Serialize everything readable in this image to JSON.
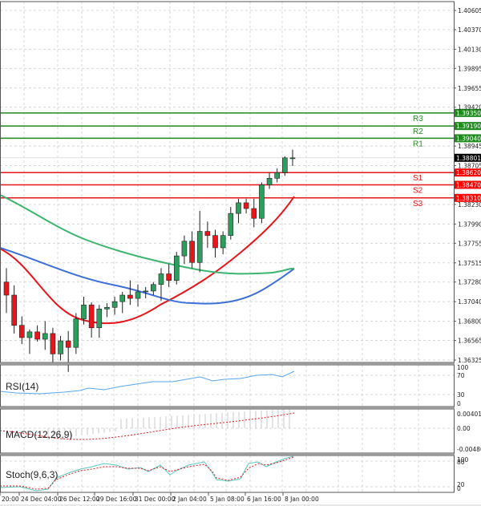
{
  "chart_data": {
    "type": "candlestick",
    "title": "",
    "main_panel": {
      "y_ticks": [
        "1.40605",
        "1.40370",
        "1.40130",
        "1.39895",
        "1.39655",
        "1.39420",
        "1.38945",
        "1.38705",
        "1.38230",
        "1.37990",
        "1.37755",
        "1.37515",
        "1.37280",
        "1.37040",
        "1.36800",
        "1.36565",
        "1.36325"
      ],
      "ylim": [
        1.3625,
        1.4072
      ],
      "current_price": "1.38801",
      "resistance": [
        {
          "label": "R3",
          "value": "1.39350"
        },
        {
          "label": "R2",
          "value": "1.39190"
        },
        {
          "label": "R1",
          "value": "1.39040"
        }
      ],
      "support": [
        {
          "label": "S1",
          "value": "1.38620"
        },
        {
          "label": "S2",
          "value": "1.38470"
        },
        {
          "label": "S3",
          "value": "1.38310"
        }
      ],
      "moving_averages": [
        {
          "name": "fast MA",
          "color": "#e8161b"
        },
        {
          "name": "medium MA",
          "color": "#3d6fdb"
        },
        {
          "name": "slow MA",
          "color": "#3cb56e"
        }
      ],
      "candles_ohlc": [
        [
          1.3728,
          1.3745,
          1.369,
          1.3712
        ],
        [
          1.3712,
          1.3724,
          1.3665,
          1.3675
        ],
        [
          1.3675,
          1.3686,
          1.3652,
          1.366
        ],
        [
          1.366,
          1.367,
          1.364,
          1.3667
        ],
        [
          1.3667,
          1.3675,
          1.3655,
          1.3658
        ],
        [
          1.3658,
          1.368,
          1.3645,
          1.3665
        ],
        [
          1.3665,
          1.3672,
          1.3628,
          1.364
        ],
        [
          1.364,
          1.3662,
          1.3632,
          1.3656
        ],
        [
          1.3656,
          1.3668,
          1.3618,
          1.3648
        ],
        [
          1.3648,
          1.369,
          1.364,
          1.3683
        ],
        [
          1.3683,
          1.371,
          1.3676,
          1.37
        ],
        [
          1.37,
          1.3703,
          1.366,
          1.3672
        ],
        [
          1.3672,
          1.37,
          1.366,
          1.3695
        ],
        [
          1.3695,
          1.3702,
          1.3685,
          1.3697
        ],
        [
          1.3697,
          1.371,
          1.3688,
          1.3704
        ],
        [
          1.3704,
          1.3716,
          1.369,
          1.3712
        ],
        [
          1.3712,
          1.373,
          1.37,
          1.3708
        ],
        [
          1.3708,
          1.3725,
          1.3698,
          1.3716
        ],
        [
          1.3716,
          1.3722,
          1.3708,
          1.3717
        ],
        [
          1.3717,
          1.3728,
          1.3712,
          1.3725
        ],
        [
          1.3725,
          1.3745,
          1.3705,
          1.3738
        ],
        [
          1.3738,
          1.375,
          1.3722,
          1.373
        ],
        [
          1.373,
          1.3765,
          1.3725,
          1.376
        ],
        [
          1.376,
          1.3785,
          1.375,
          1.3778
        ],
        [
          1.3778,
          1.379,
          1.3745,
          1.3752
        ],
        [
          1.3752,
          1.3815,
          1.374,
          1.379
        ],
        [
          1.379,
          1.3802,
          1.377,
          1.3785
        ],
        [
          1.3785,
          1.3792,
          1.3758,
          1.377
        ],
        [
          1.377,
          1.379,
          1.3762,
          1.3785
        ],
        [
          1.3785,
          1.382,
          1.378,
          1.3812
        ],
        [
          1.3812,
          1.383,
          1.38,
          1.3825
        ],
        [
          1.3825,
          1.383,
          1.3812,
          1.3818
        ],
        [
          1.3818,
          1.383,
          1.3795,
          1.3806
        ],
        [
          1.3806,
          1.385,
          1.38,
          1.3847
        ],
        [
          1.3847,
          1.3862,
          1.3842,
          1.3855
        ],
        [
          1.3855,
          1.3867,
          1.385,
          1.3862
        ],
        [
          1.3862,
          1.3882,
          1.3858,
          1.388
        ],
        [
          1.388,
          1.389,
          1.387,
          1.388
        ]
      ]
    },
    "x_ticks": [
      "20:00",
      "24 Dec 04:00",
      "26 Dec 12:00",
      "29 Dec 16:00",
      "31 Dec 00:00",
      "2 Jan 04:00",
      "5 Jan 08:00",
      "6 Jan 16:00",
      "8 Jan 00:00"
    ],
    "sub_panels": [
      {
        "name": "RSI(14)",
        "y_ticks": [
          "100",
          "70",
          "30",
          "0"
        ],
        "color": "#5aa7ee"
      },
      {
        "name": "MACD(12,26,9)",
        "y_ticks": [
          "0.004013",
          "0.00",
          "-0.004807"
        ],
        "histogram_color": "#c8c8c8",
        "signal_color": "#e8161b"
      },
      {
        "name": "Stoch(9,6,3)",
        "y_ticks": [
          "100",
          "80",
          "20",
          "0"
        ],
        "main_color": "#58c8c0",
        "signal_color": "#e8161b"
      }
    ]
  },
  "labels": {
    "rsi": "RSI(14)",
    "macd": "MACD(12,26,9)",
    "stoch": "Stoch(9,6,3)"
  }
}
